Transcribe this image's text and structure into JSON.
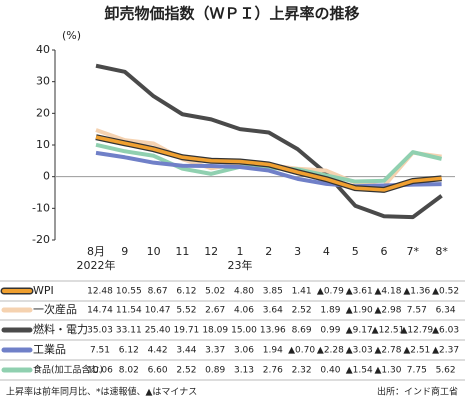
{
  "chart_data": {
    "type": "line",
    "title": "卸売物価指数（ＷＰＩ）上昇率の推移",
    "y_unit": "(%)",
    "categories": [
      "8月",
      "9",
      "10",
      "11",
      "12",
      "1",
      "2",
      "3",
      "4",
      "5",
      "6",
      "7*",
      "8*"
    ],
    "year_labels": [
      {
        "index": 0,
        "label": "2022年"
      },
      {
        "index": 5,
        "label": "23年"
      }
    ],
    "ylim": [
      -20,
      40
    ],
    "yticks": [
      -20,
      -10,
      0,
      10,
      20,
      30,
      40
    ],
    "series": [
      {
        "name": "WPI",
        "color": "#f0a030",
        "outline": "#333333",
        "values": [
          12.48,
          10.55,
          8.67,
          6.12,
          5.02,
          4.8,
          3.85,
          1.41,
          -0.79,
          -3.61,
          -4.18,
          -1.36,
          -0.52
        ],
        "value_labels": [
          "12.48",
          "10.55",
          "8.67",
          "6.12",
          "5.02",
          "4.80",
          "3.85",
          "1.41",
          "▲0.79",
          "▲3.61",
          "▲4.18",
          "▲1.36",
          "▲0.52"
        ]
      },
      {
        "name": "一次産品",
        "color": "#f5d2b0",
        "values": [
          14.74,
          11.54,
          10.47,
          5.52,
          2.67,
          4.06,
          3.64,
          2.52,
          1.89,
          -1.9,
          -2.98,
          7.57,
          6.34
        ],
        "value_labels": [
          "14.74",
          "11.54",
          "10.47",
          "5.52",
          "2.67",
          "4.06",
          "3.64",
          "2.52",
          "1.89",
          "▲1.90",
          "▲2.98",
          "7.57",
          "6.34"
        ]
      },
      {
        "name": "燃料・電力",
        "color": "#4a4a4a",
        "values": [
          35.03,
          33.11,
          25.4,
          19.71,
          18.09,
          15.0,
          13.96,
          8.69,
          0.99,
          -9.17,
          -12.51,
          -12.79,
          -6.03
        ],
        "value_labels": [
          "35.03",
          "33.11",
          "25.40",
          "19.71",
          "18.09",
          "15.00",
          "13.96",
          "8.69",
          "0.99",
          "▲9.17",
          "▲12.51",
          "▲12.79",
          "▲6.03"
        ]
      },
      {
        "name": "工業品",
        "color": "#7080c8",
        "values": [
          7.51,
          6.12,
          4.42,
          3.44,
          3.37,
          3.06,
          1.94,
          -0.7,
          -2.28,
          -3.03,
          -2.78,
          -2.51,
          -2.37
        ],
        "value_labels": [
          "7.51",
          "6.12",
          "4.42",
          "3.44",
          "3.37",
          "3.06",
          "1.94",
          "▲0.70",
          "▲2.28",
          "▲3.03",
          "▲2.78",
          "▲2.51",
          "▲2.37"
        ]
      },
      {
        "name": "食品(加工品含む)",
        "color": "#90d0b0",
        "values": [
          10.06,
          8.02,
          6.6,
          2.52,
          0.89,
          3.13,
          2.76,
          2.32,
          0.4,
          -1.54,
          -1.3,
          7.75,
          5.62
        ],
        "value_labels": [
          "10.06",
          "8.02",
          "6.60",
          "2.52",
          "0.89",
          "3.13",
          "2.76",
          "2.32",
          "0.40",
          "▲1.54",
          "▲1.30",
          "7.75",
          "5.62"
        ]
      }
    ],
    "note": "上昇率は前年同月比、*は速報値、▲はマイナス",
    "source": "出所：インド商工省"
  }
}
